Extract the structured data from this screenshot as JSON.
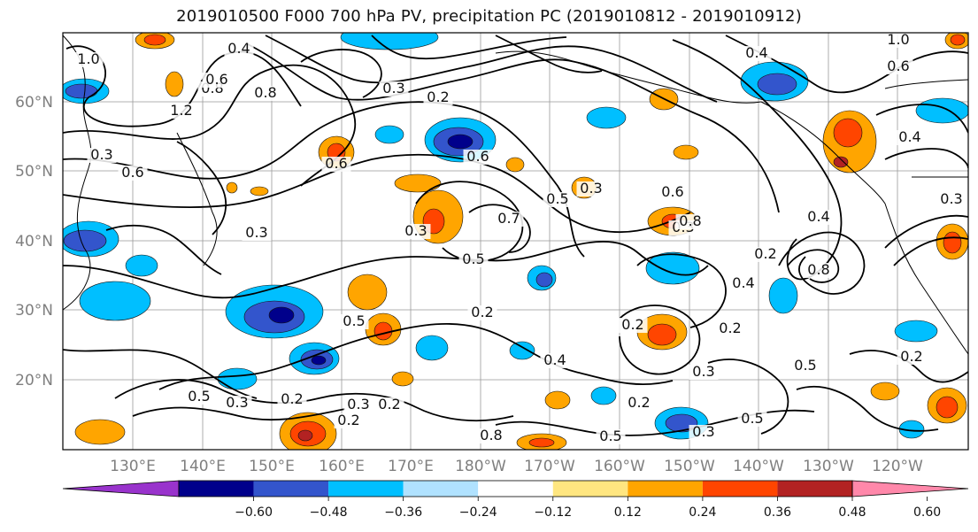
{
  "title": "2019010500 F000 700 hPa PV, precipitation PC (2019010812 - 2019010912)",
  "map": {
    "lat_ticks": [
      "60°N",
      "50°N",
      "40°N",
      "30°N",
      "20°N"
    ],
    "lon_ticks": [
      "130°E",
      "140°E",
      "150°E",
      "160°E",
      "170°E",
      "180°W",
      "170°W",
      "160°W",
      "150°W",
      "140°W",
      "130°W",
      "120°W"
    ],
    "contour_labels": [
      "1.0",
      "0.4",
      "0.8",
      "0.8",
      "1.2",
      "0.3",
      "0.6",
      "0.6",
      "0.3",
      "0.2",
      "0.6",
      "0.7",
      "0.5",
      "0.3",
      "0.2",
      "0.5",
      "0.3",
      "0.5",
      "0.2",
      "0.3",
      "0.2",
      "0.4",
      "0.5",
      "0.3",
      "0.6",
      "0.3",
      "0.2",
      "0.4",
      "0.8",
      "0.5",
      "0.2",
      "0.2",
      "0.3",
      "0.4",
      "0.5",
      "0.2",
      "0.5",
      "0.3",
      "0.2",
      "0.3",
      "0.8",
      "0.6",
      "0.8",
      "0.4",
      "0.3",
      "0.2",
      "0.4",
      "1.0",
      "0.6"
    ]
  },
  "colorbar": {
    "colors": [
      "#9933cc",
      "#00008b",
      "#3355cc",
      "#00bfff",
      "#b0e2ff",
      "#ffffff",
      "#ffe680",
      "#ffa500",
      "#ff4500",
      "#b22222",
      "#ff88aa"
    ],
    "ticks": [
      "−0.60",
      "−0.48",
      "−0.36",
      "−0.24",
      "−0.12",
      "0.12",
      "0.24",
      "0.36",
      "0.48",
      "0.60"
    ]
  }
}
